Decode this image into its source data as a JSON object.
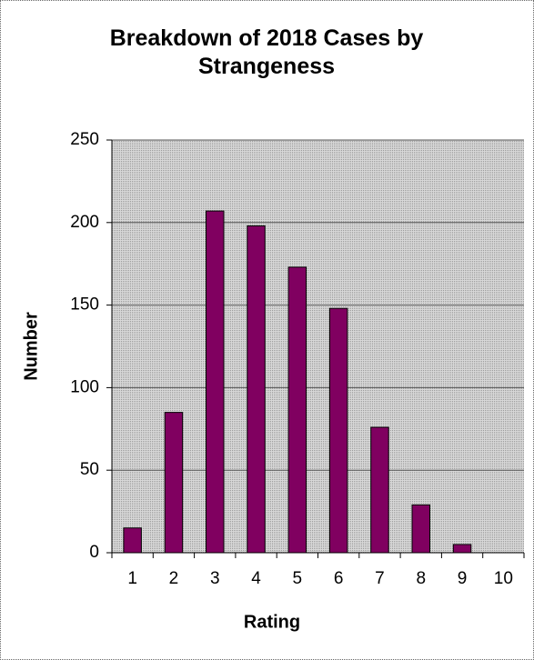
{
  "chart_data": {
    "type": "bar",
    "title": "Breakdown of 2018 Cases by Strangeness",
    "x_label": "Rating",
    "y_label": "Number",
    "categories": [
      "1",
      "2",
      "3",
      "4",
      "5",
      "6",
      "7",
      "8",
      "9",
      "10"
    ],
    "values": [
      15,
      85,
      207,
      198,
      173,
      148,
      76,
      29,
      5,
      0
    ],
    "color": "#800060",
    "ylim": [
      0,
      250
    ],
    "yticks": [
      0,
      50,
      100,
      150,
      200,
      250
    ],
    "grid": true
  }
}
